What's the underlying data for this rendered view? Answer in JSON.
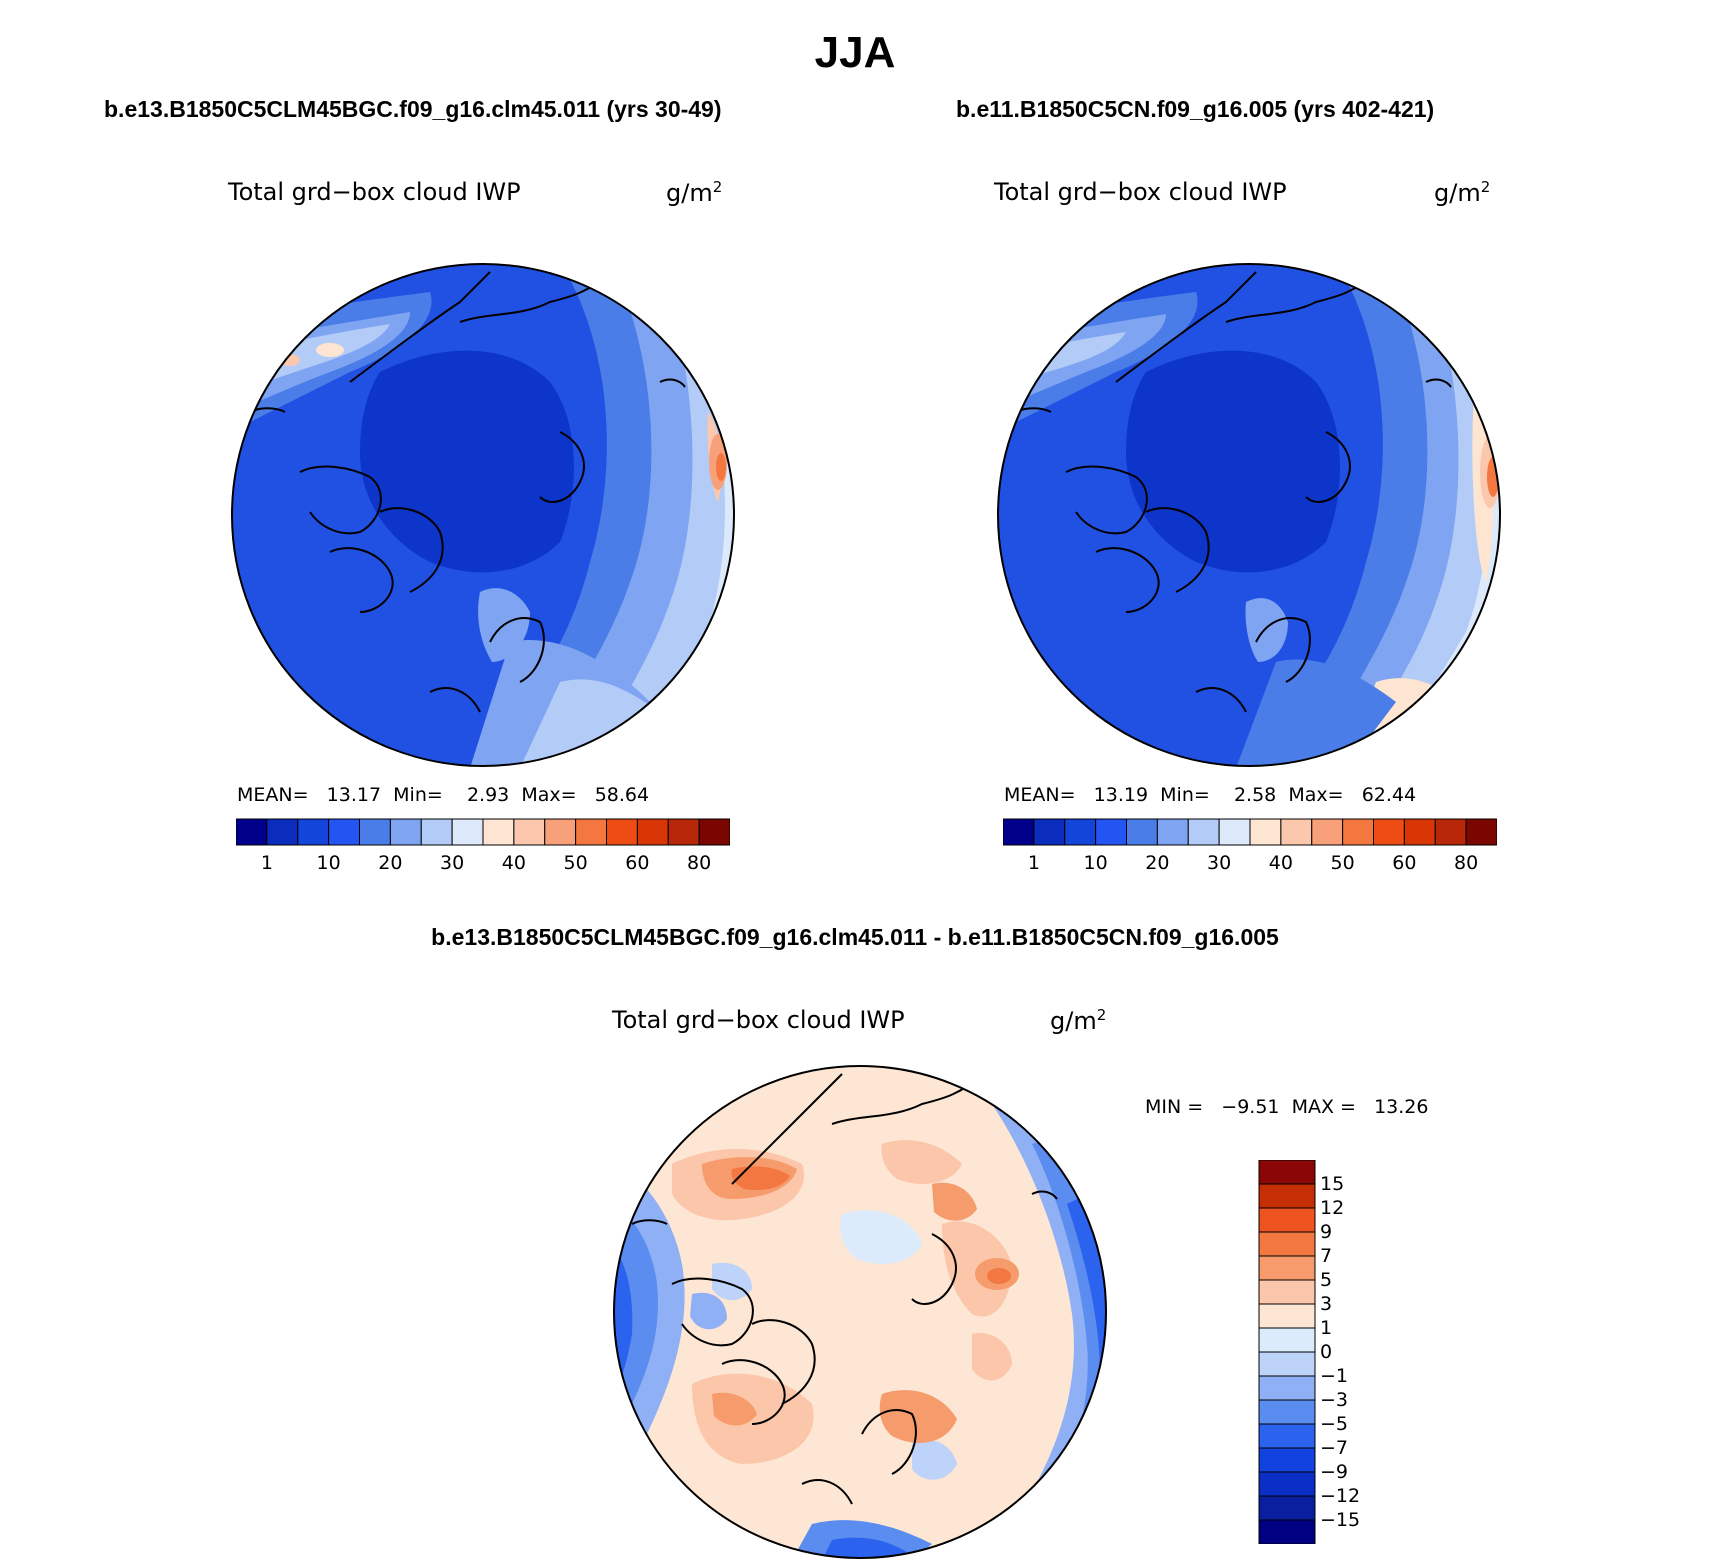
{
  "title": "JJA",
  "panels": [
    {
      "case": "b.e13.B1850C5CLM45BGC.f09_g16.clm45.011 (yrs 30-49)",
      "variable": "Total grd−box cloud IWP",
      "units_base": "g/m",
      "units_exp": "2",
      "stats": {
        "mean_label": "MEAN=",
        "mean": "13.17",
        "min_label": "Min=",
        "min": "2.93",
        "max_label": "Max=",
        "max": "58.64"
      }
    },
    {
      "case": "b.e11.B1850C5CN.f09_g16.005 (yrs 402-421)",
      "variable": "Total grd−box cloud IWP",
      "units_base": "g/m",
      "units_exp": "2",
      "stats": {
        "mean_label": "MEAN=",
        "mean": "13.19",
        "min_label": "Min=",
        "min": "2.58",
        "max_label": "Max=",
        "max": "62.44"
      }
    }
  ],
  "diff_panel": {
    "case": "b.e13.B1850C5CLM45BGC.f09_g16.clm45.011 - b.e11.B1850C5CN.f09_g16.005",
    "variable": "Total grd−box cloud IWP",
    "units_base": "g/m",
    "units_exp": "2",
    "minmax": "MIN =   −9.51  MAX =   13.26"
  },
  "colorbar_abs": {
    "colors": [
      "#00008b",
      "#0a2dbd",
      "#1345db",
      "#2255f2",
      "#4a7de8",
      "#7fa4f2",
      "#b3ccf7",
      "#dbe9fb",
      "#fde5d2",
      "#fbc8ad",
      "#f7a07a",
      "#f3773f",
      "#ee4c14",
      "#d93606",
      "#b82709",
      "#7a0600"
    ],
    "ticks": [
      "1",
      "10",
      "20",
      "30",
      "40",
      "50",
      "60",
      "80"
    ]
  },
  "colorbar_diff": {
    "colors": [
      "#000083",
      "#0a1ea0",
      "#0b2ec6",
      "#1243e0",
      "#2b62ee",
      "#5b8cf0",
      "#8fb0f4",
      "#bdd3f9",
      "#dcebfb",
      "#fde6d3",
      "#fbc6a9",
      "#f69b6c",
      "#f27740",
      "#ee5320",
      "#c62f06",
      "#8b0705"
    ],
    "ticks": [
      "−15",
      "−12",
      "−9",
      "−7",
      "−5",
      "−3",
      "−1",
      "0",
      "1",
      "3",
      "5",
      "7",
      "9",
      "12",
      "15"
    ]
  },
  "map_colors": {
    "abs_base": "#2151e3",
    "abs_dark": "#0d35c9",
    "abs_mid": "#4a7de8",
    "abs_light": "#b3ccf7",
    "diff_base": "#fde6d3",
    "diff_pos": "#f69b6c",
    "diff_neg": "#5b8cf0"
  }
}
